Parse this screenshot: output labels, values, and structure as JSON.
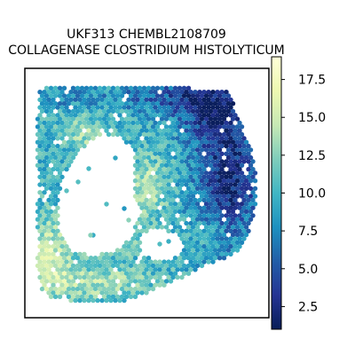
{
  "chart_data": {
    "type": "heatmap",
    "title": "UKF313 CHEMBL2108709",
    "subtitle": "COLLAGENASE CLOSTRIDIUM HISTOLYTICUM",
    "xlabel": "",
    "ylabel": "",
    "colormap": "YlGnBu_r",
    "colorbar": {
      "vmin": 1.0,
      "vmax": 19.0,
      "ticks": [
        2.5,
        5.0,
        7.5,
        10.0,
        12.5,
        15.0,
        17.5
      ],
      "tick_labels": [
        "2.5",
        "5.0",
        "7.5",
        "10.0",
        "12.5",
        "15.0",
        "17.5"
      ]
    },
    "value_gradient": "low values (dark blue, ~2-5) concentrated on the right side of the tissue, high values (pale yellow, ~13-18) around the lower-left and central regions, mid values (teal, ~8-11) elsewhere",
    "axes_visible": false
  },
  "colors": {
    "stops": [
      "#081d58",
      "#253494",
      "#225ea8",
      "#1d91c0",
      "#41b6c4",
      "#7fcdbb",
      "#c7e9b4",
      "#edf8b1",
      "#ffffd9"
    ],
    "frame": "#000000",
    "background": "#ffffff"
  }
}
